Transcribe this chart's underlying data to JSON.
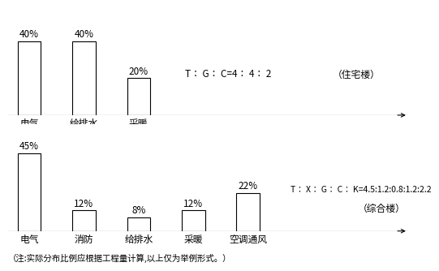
{
  "chart1": {
    "categories": [
      "电气",
      "给排水",
      "采暖"
    ],
    "values": [
      40,
      40,
      20
    ],
    "formula": "T： G： C=4： 4： 2",
    "side_label": "（住宅楼）"
  },
  "chart2": {
    "categories": [
      "电气",
      "消防",
      "给排水",
      "采暖",
      "空调通风"
    ],
    "values": [
      45,
      12,
      8,
      12,
      22
    ],
    "formula": "T： X： G： C： K=4.5:1.2:0.8:1.2:2.2",
    "side_label": "（综合楼）"
  },
  "footnote": "（注:实际分布比例应根据工程量计算,以上仅为举例形式。）",
  "bg_color": "#ffffff",
  "bar_color": "#ffffff",
  "bar_edge_color": "#000000",
  "text_color": "#000000",
  "font_size": 8.5,
  "small_font_size": 7.5
}
